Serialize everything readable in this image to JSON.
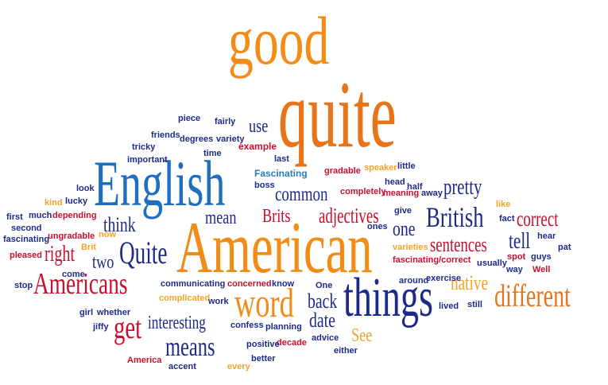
{
  "colors": {
    "orange": "#F28C17",
    "dark_orange": "#E8741A",
    "red": "#C8102E",
    "crimson": "#D0202E",
    "blue": "#1F6FBF",
    "navy": "#1E2A8A",
    "purple": "#6A1E8A",
    "violet": "#7B2E9A",
    "gold": "#F2A32B",
    "teal": "#2E7BB5",
    "maroon": "#8B1E3F"
  },
  "words": [
    "good",
    "quite",
    "English",
    "American",
    "things",
    "word",
    "different",
    "Americans",
    "British",
    "Quite",
    "means",
    "get",
    "pretty",
    "common",
    "adjectives",
    "sentences",
    "correct",
    "one",
    "think",
    "mean",
    "Brits",
    "tell",
    "two",
    "right",
    "native",
    "back",
    "interesting",
    "date",
    "See",
    "use",
    "example",
    "Fascinating",
    "boss",
    "last",
    "gradable",
    "speaker",
    "little",
    "head",
    "half",
    "away",
    "completely",
    "meaning",
    "give",
    "ones",
    "fact",
    "like",
    "hear",
    "pat",
    "guys",
    "Well",
    "usually",
    "way",
    "spot",
    "varieties",
    "fascinating/correct",
    "exercise",
    "around",
    "lived",
    "still",
    "One",
    "know",
    "concerned",
    "communicating",
    "complicated",
    "work",
    "confess",
    "planning",
    "decade",
    "advice",
    "either",
    "positive",
    "better",
    "every",
    "accent",
    "America",
    "jiffy",
    "girl",
    "whether",
    "come",
    "stop",
    "pleased",
    "fascinating",
    "second",
    "first",
    "much",
    "depending",
    "ungradable",
    "Brit",
    "now",
    "kind",
    "lucky",
    "look",
    "tricky",
    "important",
    "friends",
    "degrees",
    "time",
    "variety",
    "piece",
    "fairly"
  ]
}
